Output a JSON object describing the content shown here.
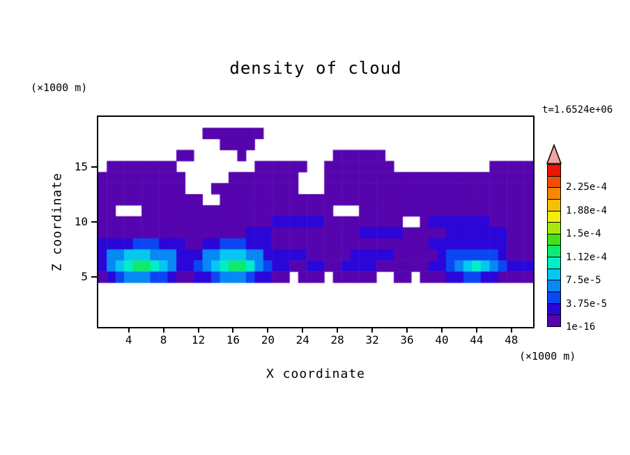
{
  "chart_data": {
    "type": "heatmap",
    "title": "density of cloud",
    "time_annotation": "t=1.6524e+06",
    "x_axis": {
      "label": "X coordinate",
      "unit": "(×1000 m)",
      "ticks": [
        4,
        8,
        12,
        16,
        20,
        24,
        28,
        32,
        36,
        40,
        44,
        48
      ],
      "range": [
        0.5,
        50.5
      ]
    },
    "y_axis": {
      "label": "Z coordinate",
      "unit": "(×1000 m)",
      "ticks": [
        5,
        10,
        15
      ],
      "range": [
        0.5,
        19.5
      ]
    },
    "colorbar": {
      "pointer_color": "#f2a3a3",
      "segment_colors": [
        "#5504ae",
        "#2a06d8",
        "#0b46f2",
        "#0788f5",
        "#06c7f0",
        "#02eec8",
        "#0fe972",
        "#45e01c",
        "#a8e80b",
        "#f2ee0a",
        "#f5c107",
        "#f58705",
        "#f04e04",
        "#ee1406"
      ],
      "labels": [
        "1e-16",
        "3.75e-5",
        "7.5e-5",
        "1.12e-4",
        "1.5e-4",
        "1.88e-4",
        "2.25e-4"
      ],
      "label_step": 2
    },
    "grid": {
      "cols": 50,
      "rows_count": 19,
      "encoding": "rows listed top to bottom; each char is a cell level: 0 = no cloud (white), n = colorbar segment n counted from bottom",
      "rows": [
        "00000000000000000000000000000000000000000000000000",
        "00000000000011111110000000000000000000000000000000",
        "00000000000000111100000000000000000000000000000000",
        "00000000011000001000000000011111100000000000000000",
        "01111111100000000011111100111111110000000000011111",
        "11111111110000011111111000111111111111111111111111",
        "11111111110001111111111000111111111111111111111111",
        "11111111111100111111111111111111111111111111111111",
        "11000111111111111111111111100011111111111111111111",
        "11111111111111111111222222111111111001222222211111",
        "11111111111111111222111111111122222111112222222111",
        "22223332221122333222111111111111111111222222222111",
        "24455544422244555442222211111222221111123333332111",
        "24567765422345677643221122112222111111223456543222",
        "12344433211223444322110111011111001101112233221111",
        "00000000000000000000000000000000000000000000000000",
        "00000000000000000000000000000000000000000000000000",
        "00000000000000000000000000000000000000000000000000",
        "00000000000000000000000000000000000000000000000000"
      ]
    }
  }
}
